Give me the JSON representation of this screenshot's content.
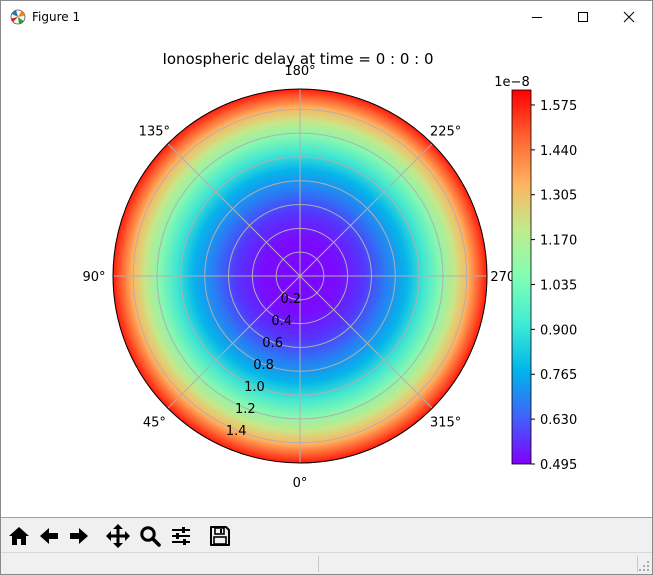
{
  "window": {
    "title": "Figure 1",
    "icons": {
      "app": "matplotlib-logo-icon",
      "minimize": "minimize-icon",
      "maximize": "maximize-icon",
      "close": "close-icon"
    }
  },
  "chart_data": {
    "type": "heatmap",
    "projection": "polar",
    "title": "Ionospheric delay at time = 0 : 0 : 0",
    "theta_tick_labels": [
      "0°",
      "45°",
      "90°",
      "135°",
      "180°",
      "225°",
      "270°",
      "315°"
    ],
    "theta_zero_location": "bottom",
    "theta_direction": "counterclockwise",
    "radial_ticks": [
      0.2,
      0.4,
      0.6,
      0.8,
      1.0,
      1.2,
      1.4
    ],
    "radial_tick_labels": [
      "0.2",
      "0.4",
      "0.6",
      "0.8",
      "1.0",
      "1.2",
      "1.4"
    ],
    "rlim": [
      0,
      1.57
    ],
    "grid": true,
    "colormap": "rainbow",
    "field": {
      "min": 4.95e-09,
      "max": 1.62e-08,
      "pattern": "radially increasing, minimum at center"
    },
    "colorbar": {
      "offset_label": "1e−8",
      "ticks": [
        0.495,
        0.63,
        0.765,
        0.9,
        1.035,
        1.17,
        1.305,
        1.44,
        1.575
      ],
      "tick_labels": [
        "0.495",
        "0.630",
        "0.765",
        "0.900",
        "1.035",
        "1.170",
        "1.305",
        "1.440",
        "1.575"
      ],
      "range": [
        0.495,
        1.62
      ],
      "stops": [
        "#8000ff",
        "#4062fa",
        "#00b5eb",
        "#40ecd4",
        "#80ffb4",
        "#c0eb8d",
        "#ffb360",
        "#ff6230",
        "#ff0000"
      ]
    }
  },
  "toolbar": {
    "tools": [
      {
        "name": "home",
        "icon": "home-icon"
      },
      {
        "name": "back",
        "icon": "arrow-left-icon"
      },
      {
        "name": "forward",
        "icon": "arrow-right-icon"
      },
      {
        "name": "pan",
        "icon": "move-icon"
      },
      {
        "name": "zoom",
        "icon": "zoom-icon"
      },
      {
        "name": "subplots",
        "icon": "sliders-icon"
      },
      {
        "name": "save",
        "icon": "save-icon"
      }
    ]
  }
}
